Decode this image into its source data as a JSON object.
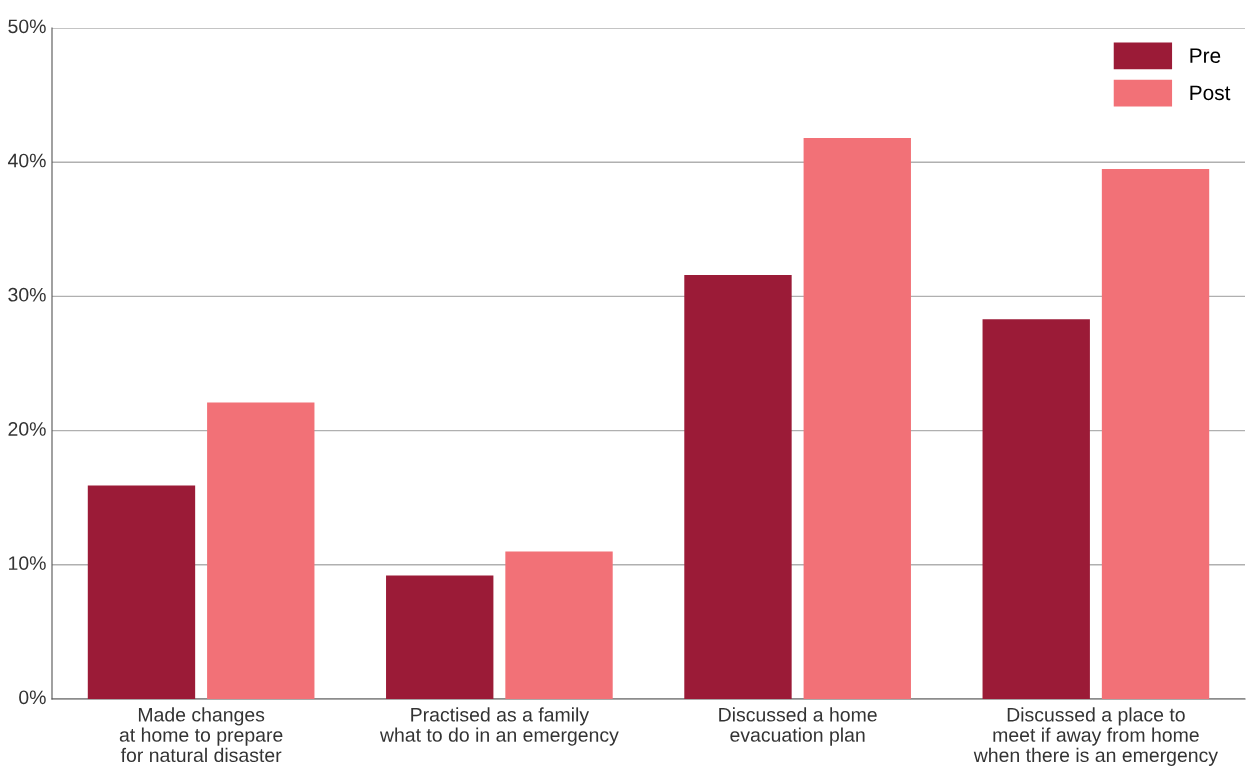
{
  "chart_data": {
    "type": "bar",
    "categories": [
      "Made changes\nat home to prepare\nfor natural disaster",
      "Practised as a family\nwhat to do in an emergency",
      "Discussed a home\nevacuation plan",
      "Discussed a place to\nmeet if away from home\nwhen there is an emergency"
    ],
    "series": [
      {
        "name": "Pre",
        "color": "#9b1b37",
        "values": [
          15.9,
          9.2,
          31.6,
          28.3
        ]
      },
      {
        "name": "Post",
        "color": "#f27177",
        "values": [
          22.1,
          11.0,
          41.8,
          39.5
        ]
      }
    ],
    "ylim": [
      0,
      50
    ],
    "yticks": [
      {
        "value": 0,
        "label": "0%"
      },
      {
        "value": 10,
        "label": "10%"
      },
      {
        "value": 20,
        "label": "20%"
      },
      {
        "value": 30,
        "label": "30%"
      },
      {
        "value": 40,
        "label": "40%"
      },
      {
        "value": 50,
        "label": "50%"
      }
    ],
    "grid": "y",
    "legend": "top right"
  }
}
